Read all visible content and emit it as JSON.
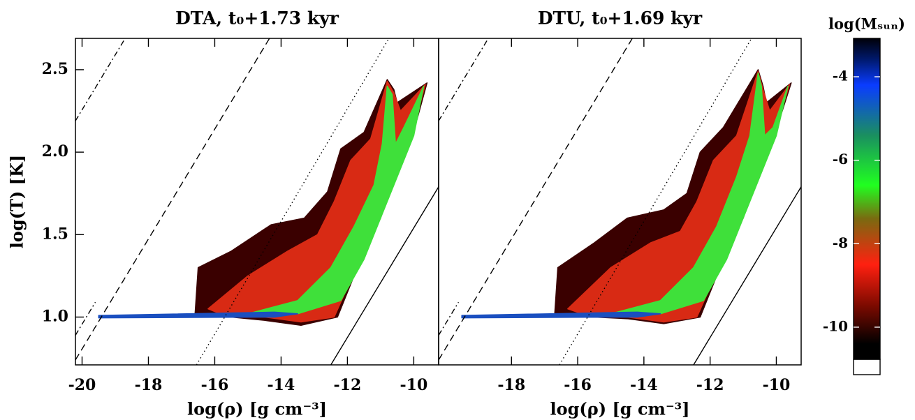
{
  "chart_data": [
    {
      "type": "density",
      "title": "DTA, t₀+1.73 kyr",
      "x_label": "log(ρ) [g cm⁻³]",
      "y_label": "log(T) [K]",
      "xlim": [
        -20.2,
        -9.25
      ],
      "ylim": [
        0.71,
        2.69
      ],
      "xticks": [
        -20,
        -18,
        -16,
        -14,
        -12,
        -10
      ],
      "yticks": [
        {
          "value": 1,
          "label": "1.0"
        },
        1.5,
        {
          "value": 2,
          "label": "2.0"
        },
        2.5
      ],
      "regions": [
        {
          "color": "#3a0000",
          "x": [
            -16.6,
            -16.5,
            -15.5,
            -14.3,
            -13.3,
            -12.6,
            -12.2,
            -11.5,
            -10.8,
            -10.6,
            -10.5,
            -9.6,
            -9.9,
            -10.6,
            -11.0,
            -11.4,
            -11.9,
            -12.3,
            -13.4,
            -14.5,
            -15.5,
            -16.6
          ],
          "y": [
            1.0,
            1.3,
            1.4,
            1.56,
            1.6,
            1.76,
            2.02,
            2.12,
            2.44,
            2.38,
            2.3,
            2.42,
            2.2,
            1.85,
            1.6,
            1.45,
            1.2,
            1.0,
            0.95,
            0.98,
            1.0,
            1.0
          ]
        },
        {
          "color": "#d82a14",
          "x": [
            -16.2,
            -15.0,
            -13.8,
            -12.9,
            -12.4,
            -11.9,
            -11.3,
            -10.8,
            -10.6,
            -10.4,
            -9.65,
            -10.0,
            -10.7,
            -11.1,
            -11.5,
            -12.0,
            -12.4,
            -13.4,
            -14.5,
            -15.6
          ],
          "y": [
            1.05,
            1.25,
            1.4,
            1.5,
            1.7,
            1.95,
            2.08,
            2.43,
            2.36,
            2.25,
            2.41,
            2.15,
            1.8,
            1.58,
            1.4,
            1.18,
            1.0,
            0.97,
            1.0,
            1.0
          ]
        },
        {
          "color": "#3fe03a",
          "x": [
            -15.0,
            -13.5,
            -12.5,
            -11.8,
            -11.2,
            -10.95,
            -10.8,
            -10.65,
            -10.55,
            -10.3,
            -9.7,
            -10.0,
            -10.8,
            -11.5,
            -12.2,
            -13.5
          ],
          "y": [
            1.02,
            1.1,
            1.3,
            1.55,
            1.8,
            2.05,
            2.4,
            2.35,
            2.05,
            2.15,
            2.4,
            2.1,
            1.7,
            1.35,
            1.1,
            1.02
          ]
        },
        {
          "color": "#1a4fc0",
          "x": [
            -19.5,
            -14.2,
            -13.5,
            -14.2,
            -19.5
          ],
          "y": [
            1.01,
            1.03,
            1.02,
            1.0,
            0.995
          ]
        }
      ],
      "lines": [
        {
          "dash": "solid",
          "x": [
            -12.5,
            -9.25
          ],
          "y": [
            0.71,
            1.79
          ]
        },
        {
          "dash": "dotted",
          "x": [
            -16.55,
            -10.75
          ],
          "y": [
            0.71,
            2.69
          ]
        },
        {
          "dash": "dashed",
          "x": [
            -20.2,
            -14.35
          ],
          "y": [
            0.74,
            2.69
          ]
        },
        {
          "dash": "dashdot",
          "x": [
            -20.2,
            -18.7
          ],
          "y": [
            2.19,
            2.69
          ]
        },
        {
          "dash": "dashdot",
          "x": [
            -20.2,
            -19.6
          ],
          "y": [
            0.89,
            1.09
          ]
        }
      ]
    },
    {
      "type": "density",
      "title": "DTU, t₀+1.69 kyr",
      "x_label": "log(ρ) [g cm⁻³]",
      "xlim": [
        -20.2,
        -9.25
      ],
      "ylim": [
        0.71,
        2.69
      ],
      "xticks": [
        -18,
        -16,
        -14,
        -12,
        -10
      ],
      "regions": [
        {
          "color": "#3a0000",
          "x": [
            -16.7,
            -16.6,
            -15.5,
            -14.5,
            -13.4,
            -12.7,
            -12.3,
            -11.6,
            -10.55,
            -10.4,
            -10.3,
            -9.55,
            -9.9,
            -10.6,
            -11.0,
            -11.4,
            -11.9,
            -12.3,
            -13.4,
            -14.5,
            -15.5,
            -16.7
          ],
          "y": [
            1.0,
            1.3,
            1.45,
            1.6,
            1.65,
            1.75,
            2.0,
            2.15,
            2.5,
            2.4,
            2.3,
            2.42,
            2.2,
            1.84,
            1.6,
            1.45,
            1.2,
            1.0,
            0.96,
            0.99,
            1.0,
            1.0
          ]
        },
        {
          "color": "#d82a14",
          "x": [
            -16.3,
            -15.0,
            -13.8,
            -12.9,
            -12.4,
            -11.9,
            -11.2,
            -10.55,
            -10.4,
            -10.2,
            -9.6,
            -10.0,
            -10.7,
            -11.1,
            -11.5,
            -12.0,
            -12.4,
            -13.4,
            -14.5,
            -15.6
          ],
          "y": [
            1.05,
            1.3,
            1.45,
            1.52,
            1.7,
            1.95,
            2.1,
            2.49,
            2.38,
            2.25,
            2.41,
            2.15,
            1.8,
            1.58,
            1.4,
            1.18,
            1.0,
            0.97,
            1.0,
            1.0
          ]
        },
        {
          "color": "#3fe03a",
          "x": [
            -15.0,
            -13.5,
            -12.5,
            -11.8,
            -11.2,
            -10.8,
            -10.55,
            -10.45,
            -10.35,
            -10.1,
            -9.65,
            -10.0,
            -10.8,
            -11.5,
            -12.2,
            -13.5
          ],
          "y": [
            1.02,
            1.1,
            1.3,
            1.55,
            1.85,
            2.1,
            2.48,
            2.4,
            2.1,
            2.15,
            2.4,
            2.1,
            1.7,
            1.35,
            1.1,
            1.02
          ]
        },
        {
          "color": "#1a4fc0",
          "x": [
            -19.5,
            -14.2,
            -13.5,
            -14.2,
            -19.5
          ],
          "y": [
            1.01,
            1.03,
            1.02,
            1.0,
            0.995
          ]
        }
      ],
      "lines": [
        {
          "dash": "solid",
          "x": [
            -12.5,
            -9.25
          ],
          "y": [
            0.71,
            1.79
          ]
        },
        {
          "dash": "dotted",
          "x": [
            -16.55,
            -10.75
          ],
          "y": [
            0.71,
            2.69
          ]
        },
        {
          "dash": "dashed",
          "x": [
            -20.2,
            -14.35
          ],
          "y": [
            0.74,
            2.69
          ]
        },
        {
          "dash": "dashdot",
          "x": [
            -20.2,
            -18.7
          ],
          "y": [
            2.19,
            2.69
          ]
        },
        {
          "dash": "dashdot",
          "x": [
            -20.2,
            -19.6
          ],
          "y": [
            0.89,
            1.09
          ]
        }
      ]
    },
    {
      "type": "colorbar",
      "title": "log(Mₛᵤₙ)",
      "clim": [
        -10.77,
        -3.08
      ],
      "yticks": [
        -10,
        -8,
        -6,
        -4
      ],
      "stops": [
        {
          "value": -3.08,
          "color": "#000008"
        },
        {
          "value": -3.6,
          "color": "#001a70"
        },
        {
          "value": -4.2,
          "color": "#0a3cff"
        },
        {
          "value": -5.4,
          "color": "#1a8f60"
        },
        {
          "value": -6.6,
          "color": "#20ff20"
        },
        {
          "value": -7.4,
          "color": "#7a6a10"
        },
        {
          "value": -8.5,
          "color": "#ff2010"
        },
        {
          "value": -9.5,
          "color": "#7a0a00"
        },
        {
          "value": -10.4,
          "color": "#000000"
        },
        {
          "value": -10.77,
          "color": "#000000"
        }
      ]
    }
  ]
}
